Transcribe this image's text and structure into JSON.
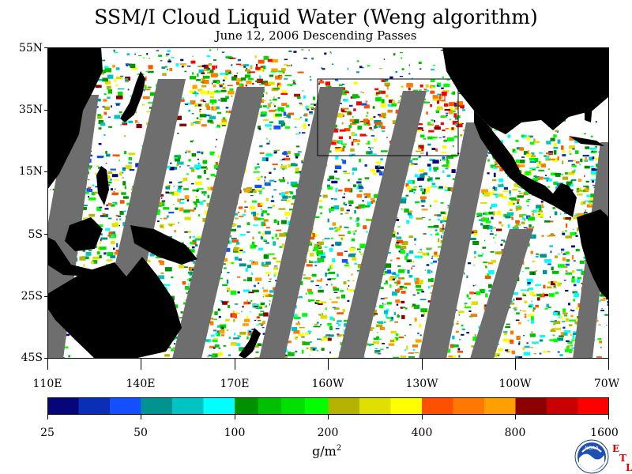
{
  "title": "SSM/I Cloud Liquid Water (Weng algorithm)",
  "subtitle": "June 12, 2006  Descending Passes",
  "latitude_labels": [
    "55N",
    "35N",
    "15N",
    "5S",
    "25S",
    "45S"
  ],
  "longitude_labels": [
    "110E",
    "140E",
    "170E",
    "160W",
    "130W",
    "100W",
    "70W"
  ],
  "colorbar": {
    "colors": [
      "#06067a",
      "#0a2eb4",
      "#1450ff",
      "#00938f",
      "#00c4c4",
      "#00ffff",
      "#009000",
      "#00c000",
      "#00e000",
      "#00ff00",
      "#b4b400",
      "#e0e000",
      "#ffff00",
      "#ff5000",
      "#ff7800",
      "#ffa000",
      "#8c0000",
      "#c80000",
      "#ff0000"
    ],
    "tick_labels": [
      "25",
      "50",
      "100",
      "200",
      "400",
      "800",
      "1600"
    ],
    "unit_base": "g/m",
    "unit_exp": "2"
  },
  "logo": {
    "name": "NOAA",
    "etl_letters": [
      "E",
      "T",
      "L"
    ]
  },
  "map_colors": {
    "land": "#000000",
    "no_data": "#6e6e6e",
    "clear": "#ffffff",
    "box": "#000000"
  }
}
